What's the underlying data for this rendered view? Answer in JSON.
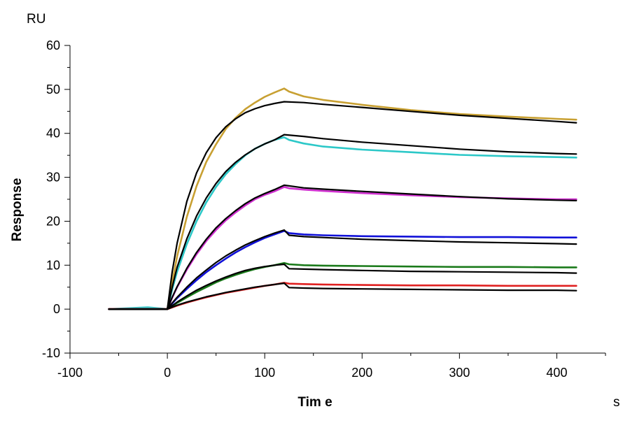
{
  "chart_data": {
    "type": "line",
    "title": "",
    "xlabel": "Tim e",
    "ylabel": "Response",
    "x_unit": "s",
    "y_unit": "RU",
    "xlim": [
      -100,
      450
    ],
    "ylim": [
      -10,
      60
    ],
    "x_ticks": [
      -100,
      0,
      100,
      200,
      300,
      400
    ],
    "y_ticks": [
      -10,
      0,
      10,
      20,
      30,
      40,
      50,
      60
    ],
    "x_tick_labels": [
      "-100",
      "0",
      "100",
      "200",
      "300",
      "400"
    ],
    "y_tick_labels": [
      "-10",
      "0",
      "10",
      "20",
      "30",
      "40",
      "50",
      "60"
    ],
    "grid": false,
    "legend": "none",
    "series": [
      {
        "color": "#c8a032",
        "kind": "measured",
        "points": [
          [
            -60,
            0
          ],
          [
            -20,
            0
          ],
          [
            0,
            0
          ],
          [
            5,
            6
          ],
          [
            10,
            12
          ],
          [
            20,
            21
          ],
          [
            30,
            28
          ],
          [
            40,
            33.5
          ],
          [
            50,
            37.5
          ],
          [
            60,
            41
          ],
          [
            70,
            43.5
          ],
          [
            80,
            45.5
          ],
          [
            90,
            47
          ],
          [
            100,
            48.3
          ],
          [
            110,
            49.3
          ],
          [
            120,
            50.2
          ],
          [
            125,
            49.5
          ],
          [
            140,
            48.4
          ],
          [
            160,
            47.6
          ],
          [
            200,
            46.5
          ],
          [
            250,
            45.3
          ],
          [
            300,
            44.4
          ],
          [
            350,
            43.8
          ],
          [
            400,
            43.3
          ],
          [
            420,
            43.1
          ]
        ]
      },
      {
        "color": "#000000",
        "kind": "fit",
        "points": [
          [
            -60,
            0
          ],
          [
            0,
            0
          ],
          [
            5,
            8.5
          ],
          [
            10,
            15
          ],
          [
            20,
            24.5
          ],
          [
            30,
            31
          ],
          [
            40,
            35.6
          ],
          [
            50,
            39
          ],
          [
            60,
            41.5
          ],
          [
            70,
            43.3
          ],
          [
            80,
            44.7
          ],
          [
            90,
            45.6
          ],
          [
            100,
            46.3
          ],
          [
            110,
            46.8
          ],
          [
            120,
            47.2
          ],
          [
            140,
            47
          ],
          [
            160,
            46.6
          ],
          [
            200,
            45.9
          ],
          [
            250,
            45
          ],
          [
            300,
            44.1
          ],
          [
            350,
            43.4
          ],
          [
            400,
            42.7
          ],
          [
            420,
            42.4
          ]
        ]
      },
      {
        "color": "#2cc8c8",
        "kind": "measured",
        "points": [
          [
            -60,
            0
          ],
          [
            -20,
            0.4
          ],
          [
            0,
            0
          ],
          [
            5,
            4.5
          ],
          [
            10,
            8.5
          ],
          [
            20,
            14.8
          ],
          [
            30,
            20
          ],
          [
            40,
            24.3
          ],
          [
            50,
            27.8
          ],
          [
            60,
            30.7
          ],
          [
            70,
            33
          ],
          [
            80,
            35
          ],
          [
            90,
            36.5
          ],
          [
            100,
            37.6
          ],
          [
            110,
            38.5
          ],
          [
            120,
            39.1
          ],
          [
            125,
            38.5
          ],
          [
            140,
            37.7
          ],
          [
            160,
            37
          ],
          [
            200,
            36.3
          ],
          [
            250,
            35.7
          ],
          [
            300,
            35.1
          ],
          [
            350,
            34.8
          ],
          [
            400,
            34.6
          ],
          [
            420,
            34.5
          ]
        ]
      },
      {
        "color": "#000000",
        "kind": "fit",
        "points": [
          [
            -60,
            0
          ],
          [
            0,
            0
          ],
          [
            5,
            5
          ],
          [
            10,
            9.5
          ],
          [
            20,
            16
          ],
          [
            30,
            21.2
          ],
          [
            40,
            25.3
          ],
          [
            50,
            28.6
          ],
          [
            60,
            31.3
          ],
          [
            70,
            33.4
          ],
          [
            80,
            35.1
          ],
          [
            90,
            36.5
          ],
          [
            100,
            37.6
          ],
          [
            110,
            38.5
          ],
          [
            120,
            39.7
          ],
          [
            140,
            39.3
          ],
          [
            160,
            38.8
          ],
          [
            200,
            38
          ],
          [
            250,
            37.2
          ],
          [
            300,
            36.4
          ],
          [
            350,
            35.8
          ],
          [
            400,
            35.4
          ],
          [
            420,
            35.3
          ]
        ]
      },
      {
        "color": "#d030d0",
        "kind": "measured",
        "points": [
          [
            -60,
            0
          ],
          [
            0,
            0
          ],
          [
            5,
            2.6
          ],
          [
            10,
            5
          ],
          [
            20,
            9
          ],
          [
            30,
            12.5
          ],
          [
            40,
            15.5
          ],
          [
            50,
            18
          ],
          [
            60,
            20.2
          ],
          [
            70,
            22
          ],
          [
            80,
            23.6
          ],
          [
            90,
            25
          ],
          [
            100,
            26
          ],
          [
            110,
            26.8
          ],
          [
            120,
            27.8
          ],
          [
            125,
            27.5
          ],
          [
            140,
            27.2
          ],
          [
            160,
            26.9
          ],
          [
            200,
            26.4
          ],
          [
            250,
            25.9
          ],
          [
            300,
            25.5
          ],
          [
            350,
            25.2
          ],
          [
            400,
            25
          ],
          [
            420,
            25
          ]
        ]
      },
      {
        "color": "#000000",
        "kind": "fit",
        "points": [
          [
            -60,
            0
          ],
          [
            0,
            0
          ],
          [
            5,
            2.7
          ],
          [
            10,
            5.1
          ],
          [
            20,
            9.3
          ],
          [
            30,
            12.9
          ],
          [
            40,
            15.9
          ],
          [
            50,
            18.5
          ],
          [
            60,
            20.6
          ],
          [
            70,
            22.4
          ],
          [
            80,
            24
          ],
          [
            90,
            25.3
          ],
          [
            100,
            26.3
          ],
          [
            110,
            27.2
          ],
          [
            120,
            28.2
          ],
          [
            140,
            27.6
          ],
          [
            160,
            27.3
          ],
          [
            200,
            26.8
          ],
          [
            250,
            26.2
          ],
          [
            300,
            25.6
          ],
          [
            350,
            25.1
          ],
          [
            400,
            24.8
          ],
          [
            420,
            24.7
          ]
        ]
      },
      {
        "color": "#1010d8",
        "kind": "measured",
        "points": [
          [
            -60,
            0
          ],
          [
            0,
            0
          ],
          [
            5,
            1.3
          ],
          [
            10,
            2.5
          ],
          [
            20,
            4.6
          ],
          [
            30,
            6.6
          ],
          [
            40,
            8.4
          ],
          [
            50,
            10
          ],
          [
            60,
            11.5
          ],
          [
            70,
            12.9
          ],
          [
            80,
            14.1
          ],
          [
            90,
            15.2
          ],
          [
            100,
            16.2
          ],
          [
            110,
            17
          ],
          [
            120,
            17.8
          ],
          [
            125,
            17.3
          ],
          [
            140,
            17
          ],
          [
            160,
            16.8
          ],
          [
            200,
            16.6
          ],
          [
            250,
            16.5
          ],
          [
            300,
            16.4
          ],
          [
            350,
            16.4
          ],
          [
            400,
            16.3
          ],
          [
            420,
            16.3
          ]
        ]
      },
      {
        "color": "#000000",
        "kind": "fit",
        "points": [
          [
            -60,
            0
          ],
          [
            0,
            0
          ],
          [
            5,
            1.4
          ],
          [
            10,
            2.7
          ],
          [
            20,
            5
          ],
          [
            30,
            7.1
          ],
          [
            40,
            8.9
          ],
          [
            50,
            10.6
          ],
          [
            60,
            12.1
          ],
          [
            70,
            13.4
          ],
          [
            80,
            14.6
          ],
          [
            90,
            15.6
          ],
          [
            100,
            16.5
          ],
          [
            110,
            17.3
          ],
          [
            120,
            18
          ],
          [
            125,
            16.8
          ],
          [
            140,
            16.5
          ],
          [
            160,
            16.3
          ],
          [
            200,
            15.9
          ],
          [
            250,
            15.6
          ],
          [
            300,
            15.3
          ],
          [
            350,
            15.1
          ],
          [
            400,
            14.9
          ],
          [
            420,
            14.8
          ]
        ]
      },
      {
        "color": "#1a7a1a",
        "kind": "measured",
        "points": [
          [
            -60,
            0
          ],
          [
            0,
            0
          ],
          [
            5,
            0.7
          ],
          [
            10,
            1.4
          ],
          [
            20,
            2.7
          ],
          [
            30,
            3.9
          ],
          [
            40,
            5
          ],
          [
            50,
            6.1
          ],
          [
            60,
            7
          ],
          [
            70,
            7.8
          ],
          [
            80,
            8.5
          ],
          [
            90,
            9.1
          ],
          [
            100,
            9.6
          ],
          [
            110,
            10
          ],
          [
            120,
            10.5
          ],
          [
            125,
            10.2
          ],
          [
            140,
            10
          ],
          [
            160,
            9.9
          ],
          [
            200,
            9.8
          ],
          [
            250,
            9.7
          ],
          [
            300,
            9.6
          ],
          [
            350,
            9.6
          ],
          [
            400,
            9.5
          ],
          [
            420,
            9.5
          ]
        ]
      },
      {
        "color": "#000000",
        "kind": "fit",
        "points": [
          [
            -60,
            0
          ],
          [
            0,
            0
          ],
          [
            5,
            0.8
          ],
          [
            10,
            1.6
          ],
          [
            20,
            3
          ],
          [
            30,
            4.3
          ],
          [
            40,
            5.4
          ],
          [
            50,
            6.4
          ],
          [
            60,
            7.3
          ],
          [
            70,
            8.1
          ],
          [
            80,
            8.8
          ],
          [
            90,
            9.3
          ],
          [
            100,
            9.7
          ],
          [
            110,
            10
          ],
          [
            120,
            10.2
          ],
          [
            125,
            9.2
          ],
          [
            140,
            9.1
          ],
          [
            160,
            9
          ],
          [
            200,
            8.8
          ],
          [
            250,
            8.6
          ],
          [
            300,
            8.5
          ],
          [
            350,
            8.4
          ],
          [
            400,
            8.3
          ],
          [
            420,
            8.2
          ]
        ]
      },
      {
        "color": "#e02020",
        "kind": "measured",
        "points": [
          [
            -60,
            0
          ],
          [
            0,
            0
          ],
          [
            5,
            0.4
          ],
          [
            10,
            0.8
          ],
          [
            20,
            1.5
          ],
          [
            30,
            2.1
          ],
          [
            40,
            2.7
          ],
          [
            50,
            3.2
          ],
          [
            60,
            3.7
          ],
          [
            70,
            4.1
          ],
          [
            80,
            4.5
          ],
          [
            90,
            4.9
          ],
          [
            100,
            5.3
          ],
          [
            110,
            5.6
          ],
          [
            120,
            6
          ],
          [
            125,
            5.8
          ],
          [
            140,
            5.7
          ],
          [
            160,
            5.6
          ],
          [
            200,
            5.5
          ],
          [
            250,
            5.4
          ],
          [
            300,
            5.4
          ],
          [
            350,
            5.3
          ],
          [
            400,
            5.3
          ],
          [
            420,
            5.3
          ]
        ]
      },
      {
        "color": "#000000",
        "kind": "fit",
        "points": [
          [
            -60,
            0
          ],
          [
            0,
            0
          ],
          [
            10,
            0.9
          ],
          [
            20,
            1.6
          ],
          [
            30,
            2.2
          ],
          [
            40,
            2.8
          ],
          [
            50,
            3.3
          ],
          [
            60,
            3.8
          ],
          [
            70,
            4.2
          ],
          [
            80,
            4.6
          ],
          [
            90,
            5
          ],
          [
            100,
            5.3
          ],
          [
            110,
            5.6
          ],
          [
            120,
            5.9
          ],
          [
            125,
            4.9
          ],
          [
            140,
            4.8
          ],
          [
            160,
            4.7
          ],
          [
            200,
            4.6
          ],
          [
            250,
            4.5
          ],
          [
            300,
            4.4
          ],
          [
            350,
            4.3
          ],
          [
            400,
            4.3
          ],
          [
            420,
            4.2
          ]
        ]
      }
    ]
  }
}
